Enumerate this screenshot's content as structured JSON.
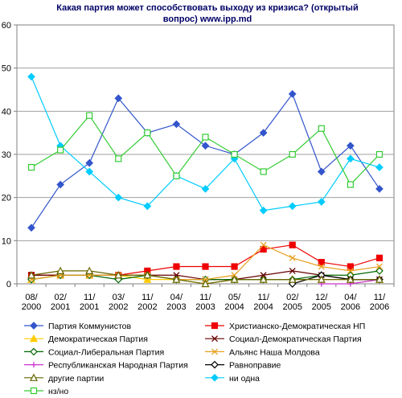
{
  "chart_data": {
    "type": "line",
    "title_lines": [
      "Какая партия может способствовать выходу из кризиса? (открытый",
      "вопрос) www.ipp.md"
    ],
    "categories": [
      [
        "08/",
        "2000"
      ],
      [
        "02/",
        "2001"
      ],
      [
        "11/",
        "2001"
      ],
      [
        "03/",
        "2002"
      ],
      [
        "11/",
        "2002"
      ],
      [
        "04/",
        "2003"
      ],
      [
        "11/",
        "2003"
      ],
      [
        "05/",
        "2004"
      ],
      [
        "11/",
        "2004"
      ],
      [
        "02/",
        "2005"
      ],
      [
        "12/",
        "2005"
      ],
      [
        "04/",
        "2006"
      ],
      [
        "11/",
        "2006"
      ]
    ],
    "ylim": [
      0,
      60
    ],
    "yticks": [
      "0",
      "10",
      "20",
      "30",
      "40",
      "50",
      "60"
    ],
    "grid": "horizontal",
    "legend_position": "bottom",
    "series": [
      {
        "name": "Партия Коммунистов",
        "color": "#3355cc",
        "marker": "diamond-filled",
        "values": [
          13,
          23,
          28,
          43,
          35,
          37,
          32,
          30,
          35,
          44,
          26,
          32,
          22
        ]
      },
      {
        "name": "Христианско-Демократическая НП",
        "color": "#ee0000",
        "marker": "square-filled",
        "values": [
          2,
          2,
          2,
          2,
          3,
          4,
          4,
          4,
          8,
          9,
          5,
          4,
          6
        ]
      },
      {
        "name": "Демократическая Партия",
        "color": "#ffcc00",
        "marker": "triangle-filled",
        "values": [
          1,
          2,
          2,
          2,
          1,
          1,
          0,
          1,
          1,
          1,
          1,
          1,
          1
        ]
      },
      {
        "name": "Социал-Демократическая Партия",
        "color": "#660000",
        "marker": "x",
        "values": [
          2,
          2,
          2,
          2,
          2,
          2,
          1,
          1,
          2,
          3,
          2,
          1,
          1
        ]
      },
      {
        "name": "Социал-Либеральная Партия",
        "color": "#006600",
        "marker": "diamond-open",
        "values": [
          1,
          2,
          2,
          1,
          2,
          1,
          1,
          1,
          1,
          1,
          2,
          2,
          3
        ]
      },
      {
        "name": "Альянс Наша Молдова",
        "color": "#e8a020",
        "marker": "x",
        "values": [
          1,
          2,
          2,
          2,
          2,
          1,
          1,
          2,
          9,
          6,
          4,
          3,
          4
        ]
      },
      {
        "name": "Республиканская Народная Партия",
        "color": "#cc33cc",
        "marker": "plus",
        "values": [
          null,
          null,
          null,
          null,
          null,
          null,
          null,
          null,
          null,
          null,
          0,
          0,
          1
        ]
      },
      {
        "name": "Равноправие",
        "color": "#000000",
        "marker": "diamond-open",
        "values": [
          null,
          null,
          null,
          null,
          null,
          null,
          null,
          null,
          null,
          0,
          2,
          1,
          1
        ]
      },
      {
        "name": "другие партии",
        "color": "#666600",
        "marker": "triangle-open",
        "values": [
          2,
          3,
          3,
          2,
          2,
          1,
          0,
          1,
          1,
          1,
          1,
          1,
          1
        ]
      },
      {
        "name": "ни одна",
        "color": "#00ccff",
        "marker": "diamond-filled",
        "values": [
          48,
          32,
          26,
          20,
          18,
          25,
          22,
          29,
          17,
          18,
          19,
          29,
          27
        ]
      },
      {
        "name": "нз/но",
        "color": "#33cc33",
        "marker": "square-open",
        "values": [
          27,
          31,
          39,
          29,
          35,
          25,
          34,
          30,
          26,
          30,
          36,
          23,
          30
        ]
      }
    ]
  }
}
